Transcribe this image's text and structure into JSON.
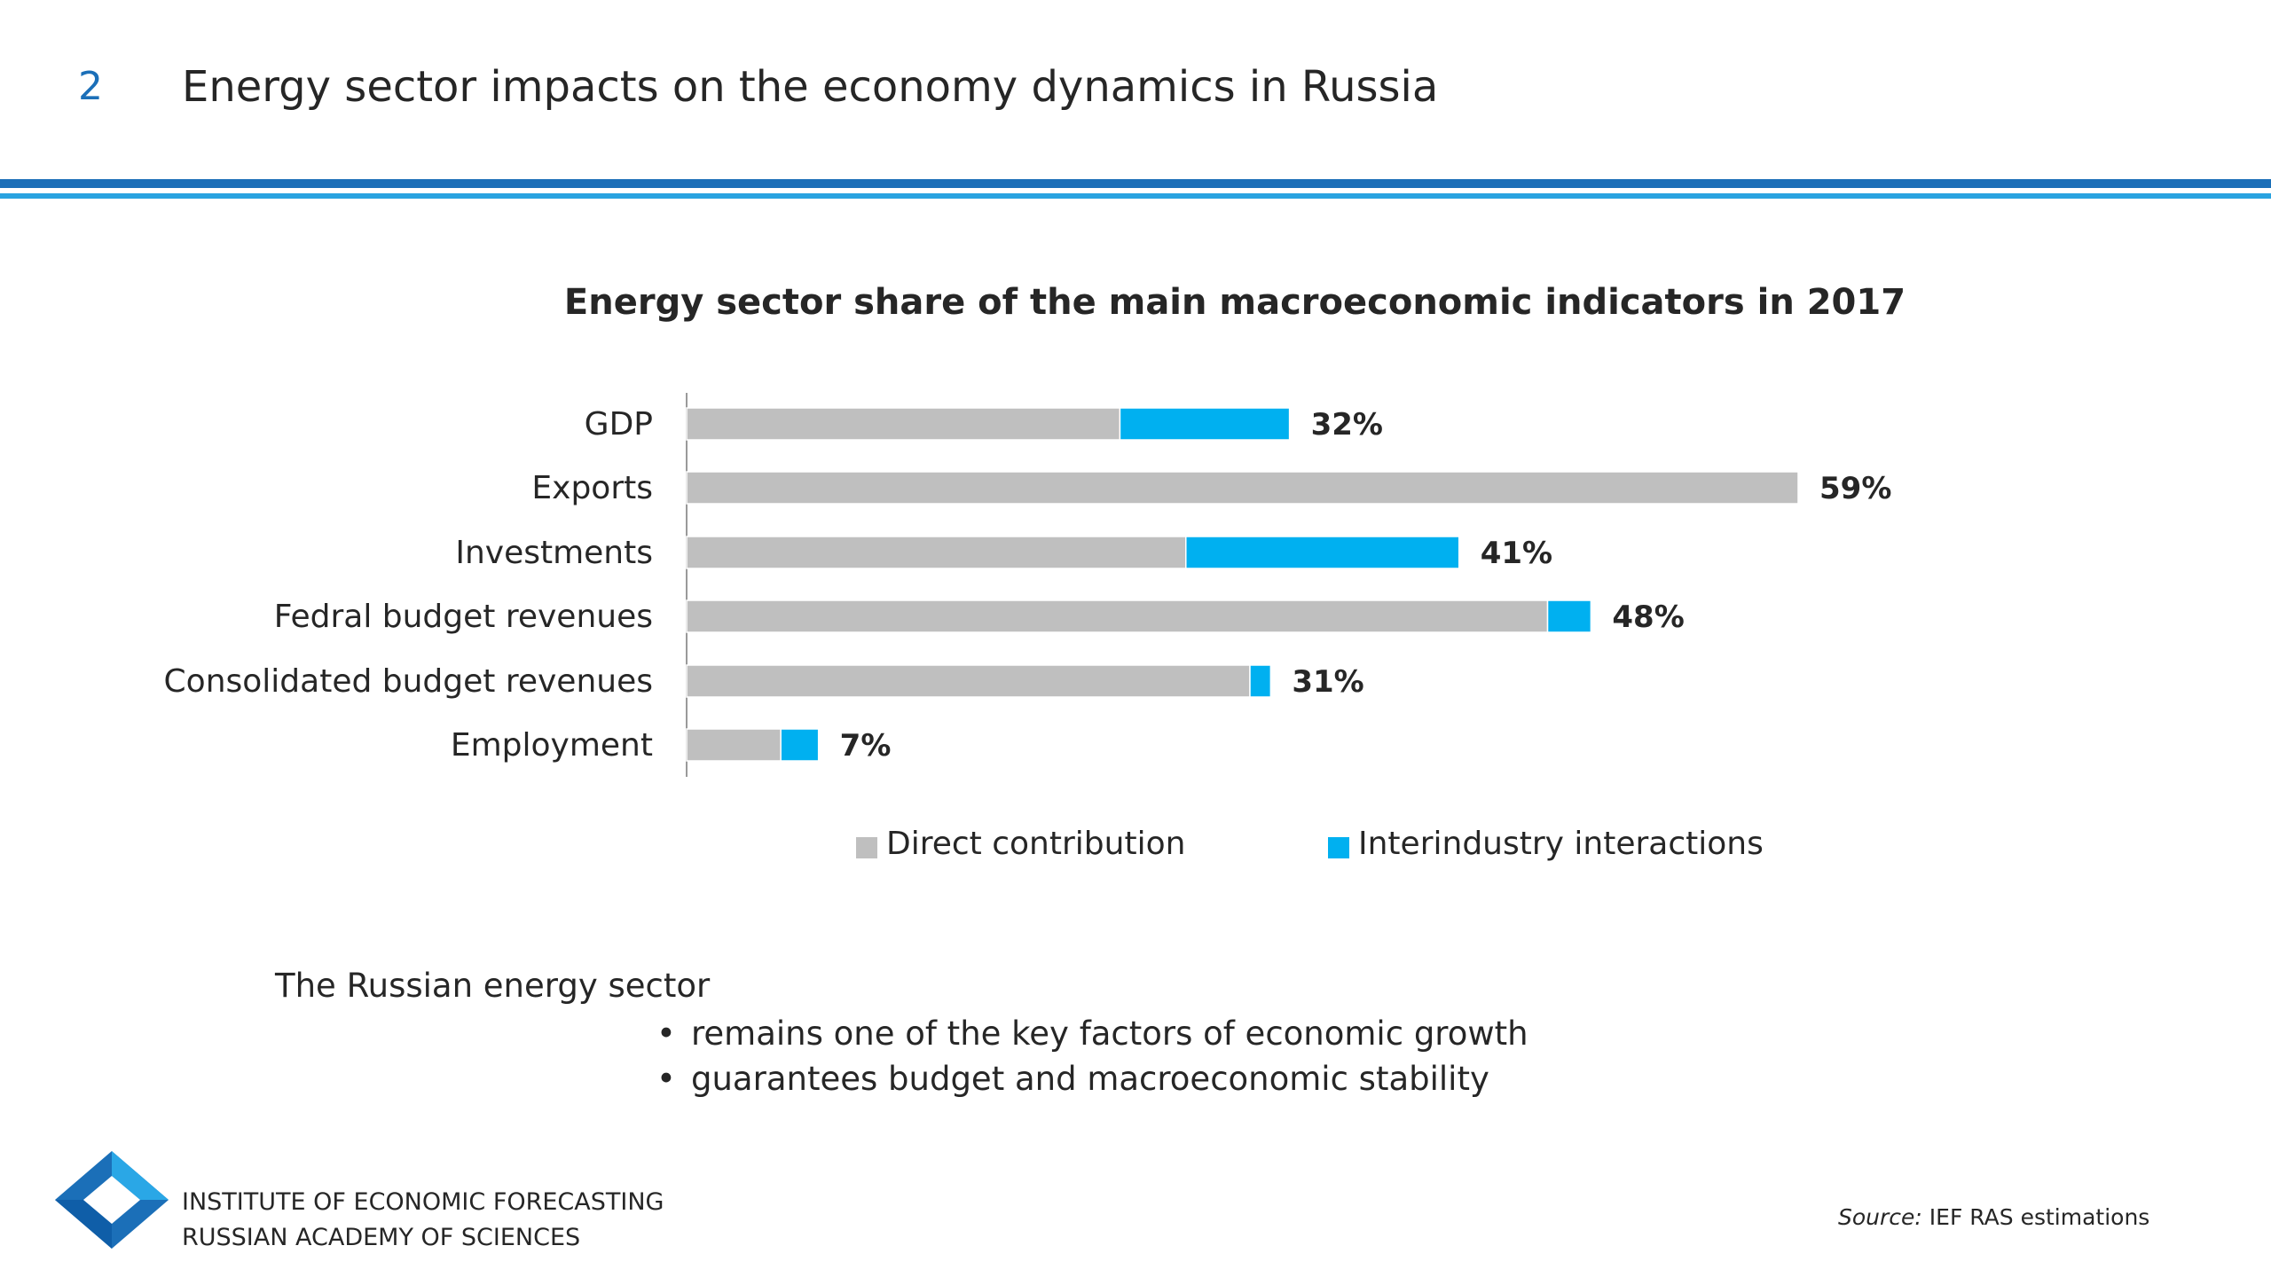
{
  "header": {
    "slide_number": "2",
    "title": "Energy sector impacts on the economy dynamics in Russia"
  },
  "chart_data": {
    "type": "bar",
    "orientation": "horizontal",
    "stacked": true,
    "title": "Energy sector share of the main macroeconomic indicators in 2017",
    "categories": [
      "GDP",
      "Exports",
      "Investments",
      "Fedral budget revenues",
      "Consolidated budget revenues",
      "Employment"
    ],
    "series": [
      {
        "name": "Direct contribution",
        "color": "#bfbfbf",
        "values": [
          23,
          59,
          26.5,
          45.7,
          29.9,
          5
        ]
      },
      {
        "name": "Interindustry interactions",
        "color": "#00b0f0",
        "values": [
          9,
          0,
          14.5,
          2.3,
          1.1,
          2
        ]
      }
    ],
    "totals_labels": [
      "32%",
      "59%",
      "41%",
      "48%",
      "31%",
      "7%"
    ],
    "xlim": [
      0,
      59
    ],
    "grid": false,
    "legend_position": "bottom"
  },
  "summary": {
    "intro": "The Russian energy sector",
    "bullets": [
      "remains one of the key factors of economic growth",
      "guarantees budget and macroeconomic stability"
    ]
  },
  "footer": {
    "org_line1": "INSTITUTE OF ECONOMIC FORECASTING",
    "org_line2": "RUSSIAN ACADEMY OF SCIENCES",
    "source_label": "Source:",
    "source_text": "IEF RAS estimations"
  },
  "colors": {
    "accent_dark": "#1b6fb8",
    "accent_light": "#29a3e0"
  }
}
